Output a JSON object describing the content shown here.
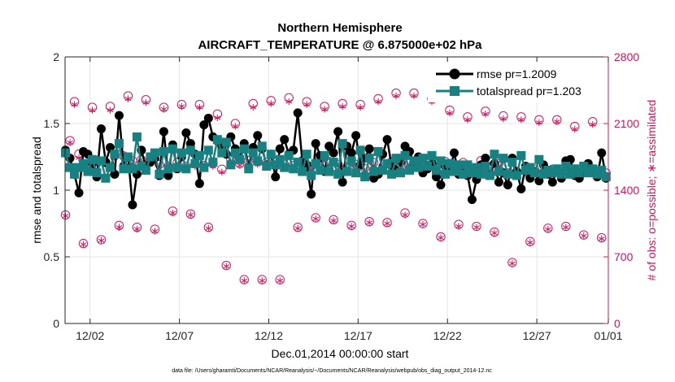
{
  "chart_data": {
    "type": "line",
    "title_line1": "Northern Hemisphere",
    "title_line2": "AIRCRAFT_TEMPERATURE @ 6.875000e+02 hPa",
    "xlabel": "Dec.01,2014 00:00:00 start",
    "ylabel_left": "rmse and totalspread",
    "ylabel_right": "# of obs: o=possible; ∗=assimilated",
    "footnote": "data file: /Users/gharamti/Documents/NCAR/Reanalysis/~/Documents/NCAR/Reanalysis/webpub/obs_diag_output_2014-12.nc",
    "x_range_days": [
      0.6,
      31.0
    ],
    "ylim_left": [
      0,
      2
    ],
    "ylim_right": [
      0,
      2800
    ],
    "yticks_left": [
      0,
      0.5,
      1,
      1.5,
      2
    ],
    "yticks_left_labels": [
      "0",
      "0.5",
      "1",
      "1.5",
      "2"
    ],
    "yticks_right": [
      0,
      700,
      1400,
      2100,
      2800
    ],
    "yticks_right_labels": [
      "0",
      "700",
      "1400",
      "2100",
      "2800"
    ],
    "xticks_days": [
      2,
      7,
      12,
      17,
      22,
      27,
      31
    ],
    "xtick_labels": [
      "12/02",
      "12/07",
      "12/12",
      "12/17",
      "12/22",
      "12/27",
      "01/01"
    ],
    "colors": {
      "rmse": "#000000",
      "totalspread": "#178080",
      "obs": "#d4145a",
      "grid": "#e6e6e6",
      "axis": "#262626"
    },
    "series": [
      {
        "name": "rmse pr=1.2009",
        "marker": "circle",
        "x": [
          0.625,
          0.875,
          1.125,
          1.375,
          1.625,
          1.875,
          2.125,
          2.375,
          2.625,
          2.875,
          3.125,
          3.375,
          3.625,
          3.875,
          4.125,
          4.375,
          4.625,
          4.875,
          5.125,
          5.375,
          5.625,
          5.875,
          6.125,
          6.375,
          6.625,
          6.875,
          7.125,
          7.375,
          7.625,
          7.875,
          8.125,
          8.375,
          8.625,
          8.875,
          9.125,
          9.375,
          9.625,
          9.875,
          10.125,
          10.375,
          10.625,
          10.875,
          11.125,
          11.375,
          11.625,
          11.875,
          12.125,
          12.375,
          12.625,
          12.875,
          13.125,
          13.375,
          13.625,
          13.875,
          14.125,
          14.375,
          14.625,
          14.875,
          15.125,
          15.375,
          15.625,
          15.875,
          16.125,
          16.375,
          16.625,
          16.875,
          17.125,
          17.375,
          17.625,
          17.875,
          18.125,
          18.375,
          18.625,
          18.875,
          19.125,
          19.375,
          19.625,
          19.875,
          20.125,
          20.375,
          20.625,
          20.875,
          21.125,
          21.375,
          21.625,
          21.875,
          22.125,
          22.375,
          22.625,
          22.875,
          23.125,
          23.375,
          23.625,
          23.875,
          24.125,
          24.375,
          24.625,
          24.875,
          25.125,
          25.375,
          25.625,
          25.875,
          26.125,
          26.375,
          26.625,
          26.875,
          27.125,
          27.375,
          27.625,
          27.875,
          28.125,
          28.375,
          28.625,
          28.875,
          29.125,
          29.375,
          29.625,
          29.875,
          30.125,
          30.375,
          30.625,
          30.875
        ],
        "values": [
          1.3,
          1.24,
          1.12,
          0.98,
          1.29,
          1.27,
          1.2,
          1.1,
          1.46,
          1.21,
          1.32,
          1.12,
          1.56,
          1.18,
          1.25,
          0.89,
          1.12,
          1.3,
          1.17,
          1.21,
          1.24,
          1.11,
          1.44,
          1.11,
          1.34,
          1.16,
          1.25,
          1.43,
          1.35,
          1.27,
          1.05,
          1.49,
          1.54,
          1.4,
          1.37,
          1.33,
          1.27,
          1.4,
          1.31,
          1.24,
          1.35,
          1.17,
          1.32,
          1.41,
          1.31,
          1.19,
          1.27,
          1.1,
          1.31,
          1.38,
          1.27,
          1.3,
          1.58,
          1.22,
          1.19,
          0.97,
          1.35,
          1.26,
          1.14,
          1.33,
          1.28,
          1.44,
          1.06,
          1.33,
          1.28,
          1.41,
          1.19,
          1.24,
          1.31,
          1.09,
          1.12,
          1.27,
          1.38,
          1.18,
          1.15,
          1.21,
          1.33,
          1.29,
          1.2,
          1.25,
          1.13,
          1.16,
          1.2,
          1.1,
          1.04,
          1.18,
          1.15,
          1.28,
          1.12,
          1.17,
          1.11,
          0.93,
          1.08,
          1.19,
          1.24,
          1.12,
          1.2,
          1.06,
          1.13,
          1.04,
          1.24,
          1.14,
          1.01,
          1.18,
          1.09,
          1.14,
          1.07,
          1.19,
          1.12,
          1.06,
          1.15,
          1.09,
          1.22,
          1.23,
          1.11,
          1.09,
          1.13,
          1.2,
          1.15,
          1.1,
          1.28,
          1.09
        ]
      },
      {
        "name": "totalspread pr=1.203",
        "marker": "square",
        "x": [
          0.625,
          0.875,
          1.125,
          1.375,
          1.625,
          1.875,
          2.125,
          2.375,
          2.625,
          2.875,
          3.125,
          3.375,
          3.625,
          3.875,
          4.125,
          4.375,
          4.625,
          4.875,
          5.125,
          5.375,
          5.625,
          5.875,
          6.125,
          6.375,
          6.625,
          6.875,
          7.125,
          7.375,
          7.625,
          7.875,
          8.125,
          8.375,
          8.625,
          8.875,
          9.125,
          9.375,
          9.625,
          9.875,
          10.125,
          10.375,
          10.625,
          10.875,
          11.125,
          11.375,
          11.625,
          11.875,
          12.125,
          12.375,
          12.625,
          12.875,
          13.125,
          13.375,
          13.625,
          13.875,
          14.125,
          14.375,
          14.625,
          14.875,
          15.125,
          15.375,
          15.625,
          15.875,
          16.125,
          16.375,
          16.625,
          16.875,
          17.125,
          17.375,
          17.625,
          17.875,
          18.125,
          18.375,
          18.625,
          18.875,
          19.125,
          19.375,
          19.625,
          19.875,
          20.125,
          20.375,
          20.625,
          20.875,
          21.125,
          21.375,
          21.625,
          21.875,
          22.125,
          22.375,
          22.625,
          22.875,
          23.125,
          23.375,
          23.625,
          23.875,
          24.125,
          24.375,
          24.625,
          24.875,
          25.125,
          25.375,
          25.625,
          25.875,
          26.125,
          26.375,
          26.625,
          26.875,
          27.125,
          27.375,
          27.625,
          27.875,
          28.125,
          28.375,
          28.625,
          28.875,
          29.125,
          29.375,
          29.625,
          29.875,
          30.125,
          30.375,
          30.625,
          30.875
        ],
        "values": [
          1.28,
          1.17,
          1.12,
          1.17,
          1.2,
          1.14,
          1.23,
          1.13,
          1.22,
          1.09,
          1.17,
          1.27,
          1.35,
          1.16,
          1.25,
          1.16,
          1.4,
          1.18,
          1.15,
          1.25,
          1.28,
          1.12,
          1.29,
          1.16,
          1.31,
          1.17,
          1.28,
          1.16,
          1.3,
          1.2,
          1.26,
          1.17,
          1.3,
          1.21,
          1.38,
          1.28,
          1.36,
          1.19,
          1.28,
          1.23,
          1.31,
          1.16,
          1.28,
          1.22,
          1.33,
          1.18,
          1.27,
          1.19,
          1.23,
          1.17,
          1.26,
          1.16,
          1.21,
          1.14,
          1.27,
          1.11,
          1.2,
          1.15,
          1.26,
          1.14,
          1.21,
          1.12,
          1.35,
          1.14,
          1.22,
          1.13,
          1.3,
          1.1,
          1.24,
          1.14,
          1.29,
          1.15,
          1.2,
          1.12,
          1.24,
          1.13,
          1.26,
          1.15,
          1.22,
          1.17,
          1.24,
          1.18,
          1.26,
          1.15,
          1.22,
          1.12,
          1.2,
          1.14,
          1.19,
          1.12,
          1.19,
          1.13,
          1.17,
          1.12,
          1.18,
          1.11,
          1.27,
          1.14,
          1.24,
          1.12,
          1.21,
          1.11,
          1.26,
          1.15,
          1.17,
          1.13,
          1.23,
          1.12,
          1.15,
          1.13,
          1.16,
          1.12,
          1.18,
          1.12,
          1.16,
          1.13,
          1.18,
          1.13,
          1.16,
          1.12,
          1.15,
          1.1
        ]
      },
      {
        "name": "possible",
        "axis": "right",
        "marker": "circle-open",
        "x": [
          0.625,
          0.875,
          1.125,
          1.375,
          1.625,
          1.875,
          2.125,
          2.375,
          2.625,
          2.875,
          3.125,
          3.375,
          3.625,
          3.875,
          4.125,
          4.375,
          4.625,
          4.875,
          5.125,
          5.375,
          5.625,
          5.875,
          6.125,
          6.375,
          6.625,
          6.875,
          7.125,
          7.375,
          7.625,
          7.875,
          8.125,
          8.375,
          8.625,
          8.875,
          9.125,
          9.375,
          9.625,
          9.875,
          10.125,
          10.375,
          10.625,
          10.875,
          11.125,
          11.375,
          11.625,
          11.875,
          12.125,
          12.375,
          12.625,
          12.875,
          13.125,
          13.375,
          13.625,
          13.875,
          14.125,
          14.375,
          14.625,
          14.875,
          15.125,
          15.375,
          15.625,
          15.875,
          16.125,
          16.375,
          16.625,
          16.875,
          17.125,
          17.375,
          17.625,
          17.875,
          18.125,
          18.375,
          18.625,
          18.875,
          19.125,
          19.375,
          19.625,
          19.875,
          20.125,
          20.375,
          20.625,
          20.875,
          21.125,
          21.375,
          21.625,
          21.875,
          22.125,
          22.375,
          22.625,
          22.875,
          23.125,
          23.375,
          23.625,
          23.875,
          24.125,
          24.375,
          24.625,
          24.875,
          25.125,
          25.375,
          25.625,
          25.875,
          26.125,
          26.375,
          26.625,
          26.875,
          27.125,
          27.375,
          27.625,
          27.875,
          28.125,
          28.375,
          28.625,
          28.875,
          29.125,
          29.375,
          29.625,
          29.875,
          30.125,
          30.375,
          30.625,
          30.875
        ],
        "values": [
          1140,
          1920,
          2330,
          1780,
          840,
          1650,
          2270,
          1710,
          880,
          1690,
          2280,
          1770,
          1030,
          1760,
          2390,
          1710,
          1010,
          1720,
          2350,
          1730,
          990,
          1670,
          2270,
          1650,
          1180,
          1690,
          2300,
          1650,
          1150,
          1680,
          2300,
          1660,
          1010,
          1680,
          2200,
          1620,
          610,
          1730,
          2100,
          1680,
          460,
          1710,
          2310,
          1700,
          460,
          1690,
          2340,
          1690,
          460,
          1670,
          2370,
          1660,
          1010,
          1680,
          2330,
          1650,
          1110,
          1720,
          2280,
          1700,
          1090,
          1670,
          2310,
          1640,
          1030,
          1670,
          2300,
          1630,
          1070,
          1690,
          2360,
          1640,
          1060,
          1700,
          2420,
          1660,
          1160,
          1690,
          2420,
          1710,
          1050,
          1700,
          2360,
          1670,
          910,
          1700,
          2240,
          1640,
          1040,
          1690,
          2170,
          1600,
          1020,
          1710,
          2230,
          1590,
          960,
          1680,
          2180,
          1580,
          640,
          1590,
          2170,
          1600,
          860,
          1620,
          2140,
          1590,
          1000,
          1620,
          2140,
          1570,
          1020,
          1620,
          2070,
          1560,
          930,
          1600,
          2120,
          1560,
          900,
          1580
        ]
      },
      {
        "name": "assimilated",
        "axis": "right",
        "marker": "asterisk",
        "x": [
          0.625,
          0.875,
          1.125,
          1.375,
          1.625,
          1.875,
          2.125,
          2.375,
          2.625,
          2.875,
          3.125,
          3.375,
          3.625,
          3.875,
          4.125,
          4.375,
          4.625,
          4.875,
          5.125,
          5.375,
          5.625,
          5.875,
          6.125,
          6.375,
          6.625,
          6.875,
          7.125,
          7.375,
          7.625,
          7.875,
          8.125,
          8.375,
          8.625,
          8.875,
          9.125,
          9.375,
          9.625,
          9.875,
          10.125,
          10.375,
          10.625,
          10.875,
          11.125,
          11.375,
          11.625,
          11.875,
          12.125,
          12.375,
          12.625,
          12.875,
          13.125,
          13.375,
          13.625,
          13.875,
          14.125,
          14.375,
          14.625,
          14.875,
          15.125,
          15.375,
          15.625,
          15.875,
          16.125,
          16.375,
          16.625,
          16.875,
          17.125,
          17.375,
          17.625,
          17.875,
          18.125,
          18.375,
          18.625,
          18.875,
          19.125,
          19.375,
          19.625,
          19.875,
          20.125,
          20.375,
          20.625,
          20.875,
          21.125,
          21.375,
          21.625,
          21.875,
          22.125,
          22.375,
          22.625,
          22.875,
          23.125,
          23.375,
          23.625,
          23.875,
          24.125,
          24.375,
          24.625,
          24.875,
          25.125,
          25.375,
          25.625,
          25.875,
          26.125,
          26.375,
          26.625,
          26.875,
          27.125,
          27.375,
          27.625,
          27.875,
          28.125,
          28.375,
          28.625,
          28.875,
          29.125,
          29.375,
          29.625,
          29.875,
          30.125,
          30.375,
          30.625,
          30.875
        ],
        "values": [
          1130,
          1900,
          2300,
          1740,
          830,
          1620,
          2240,
          1690,
          870,
          1660,
          2240,
          1740,
          1010,
          1740,
          2360,
          1680,
          990,
          1700,
          2320,
          1710,
          970,
          1650,
          2250,
          1620,
          1160,
          1660,
          2280,
          1620,
          1140,
          1650,
          2270,
          1640,
          1000,
          1650,
          2160,
          1590,
          600,
          1700,
          2070,
          1660,
          450,
          1690,
          2270,
          1670,
          450,
          1660,
          2310,
          1670,
          450,
          1650,
          2330,
          1630,
          1000,
          1650,
          2300,
          1620,
          1100,
          1700,
          2250,
          1670,
          1080,
          1650,
          2280,
          1620,
          1020,
          1650,
          2270,
          1600,
          1060,
          1660,
          2330,
          1620,
          1050,
          1670,
          2390,
          1630,
          1140,
          1670,
          2390,
          1680,
          1040,
          1670,
          2330,
          1640,
          900,
          1670,
          2210,
          1610,
          1020,
          1660,
          2140,
          1570,
          1010,
          1680,
          2200,
          1570,
          950,
          1650,
          2150,
          1560,
          630,
          1570,
          2140,
          1570,
          850,
          1590,
          2110,
          1570,
          990,
          1600,
          2120,
          1550,
          1010,
          1600,
          2040,
          1540,
          920,
          1580,
          2090,
          1540,
          890,
          1560
        ]
      }
    ]
  }
}
